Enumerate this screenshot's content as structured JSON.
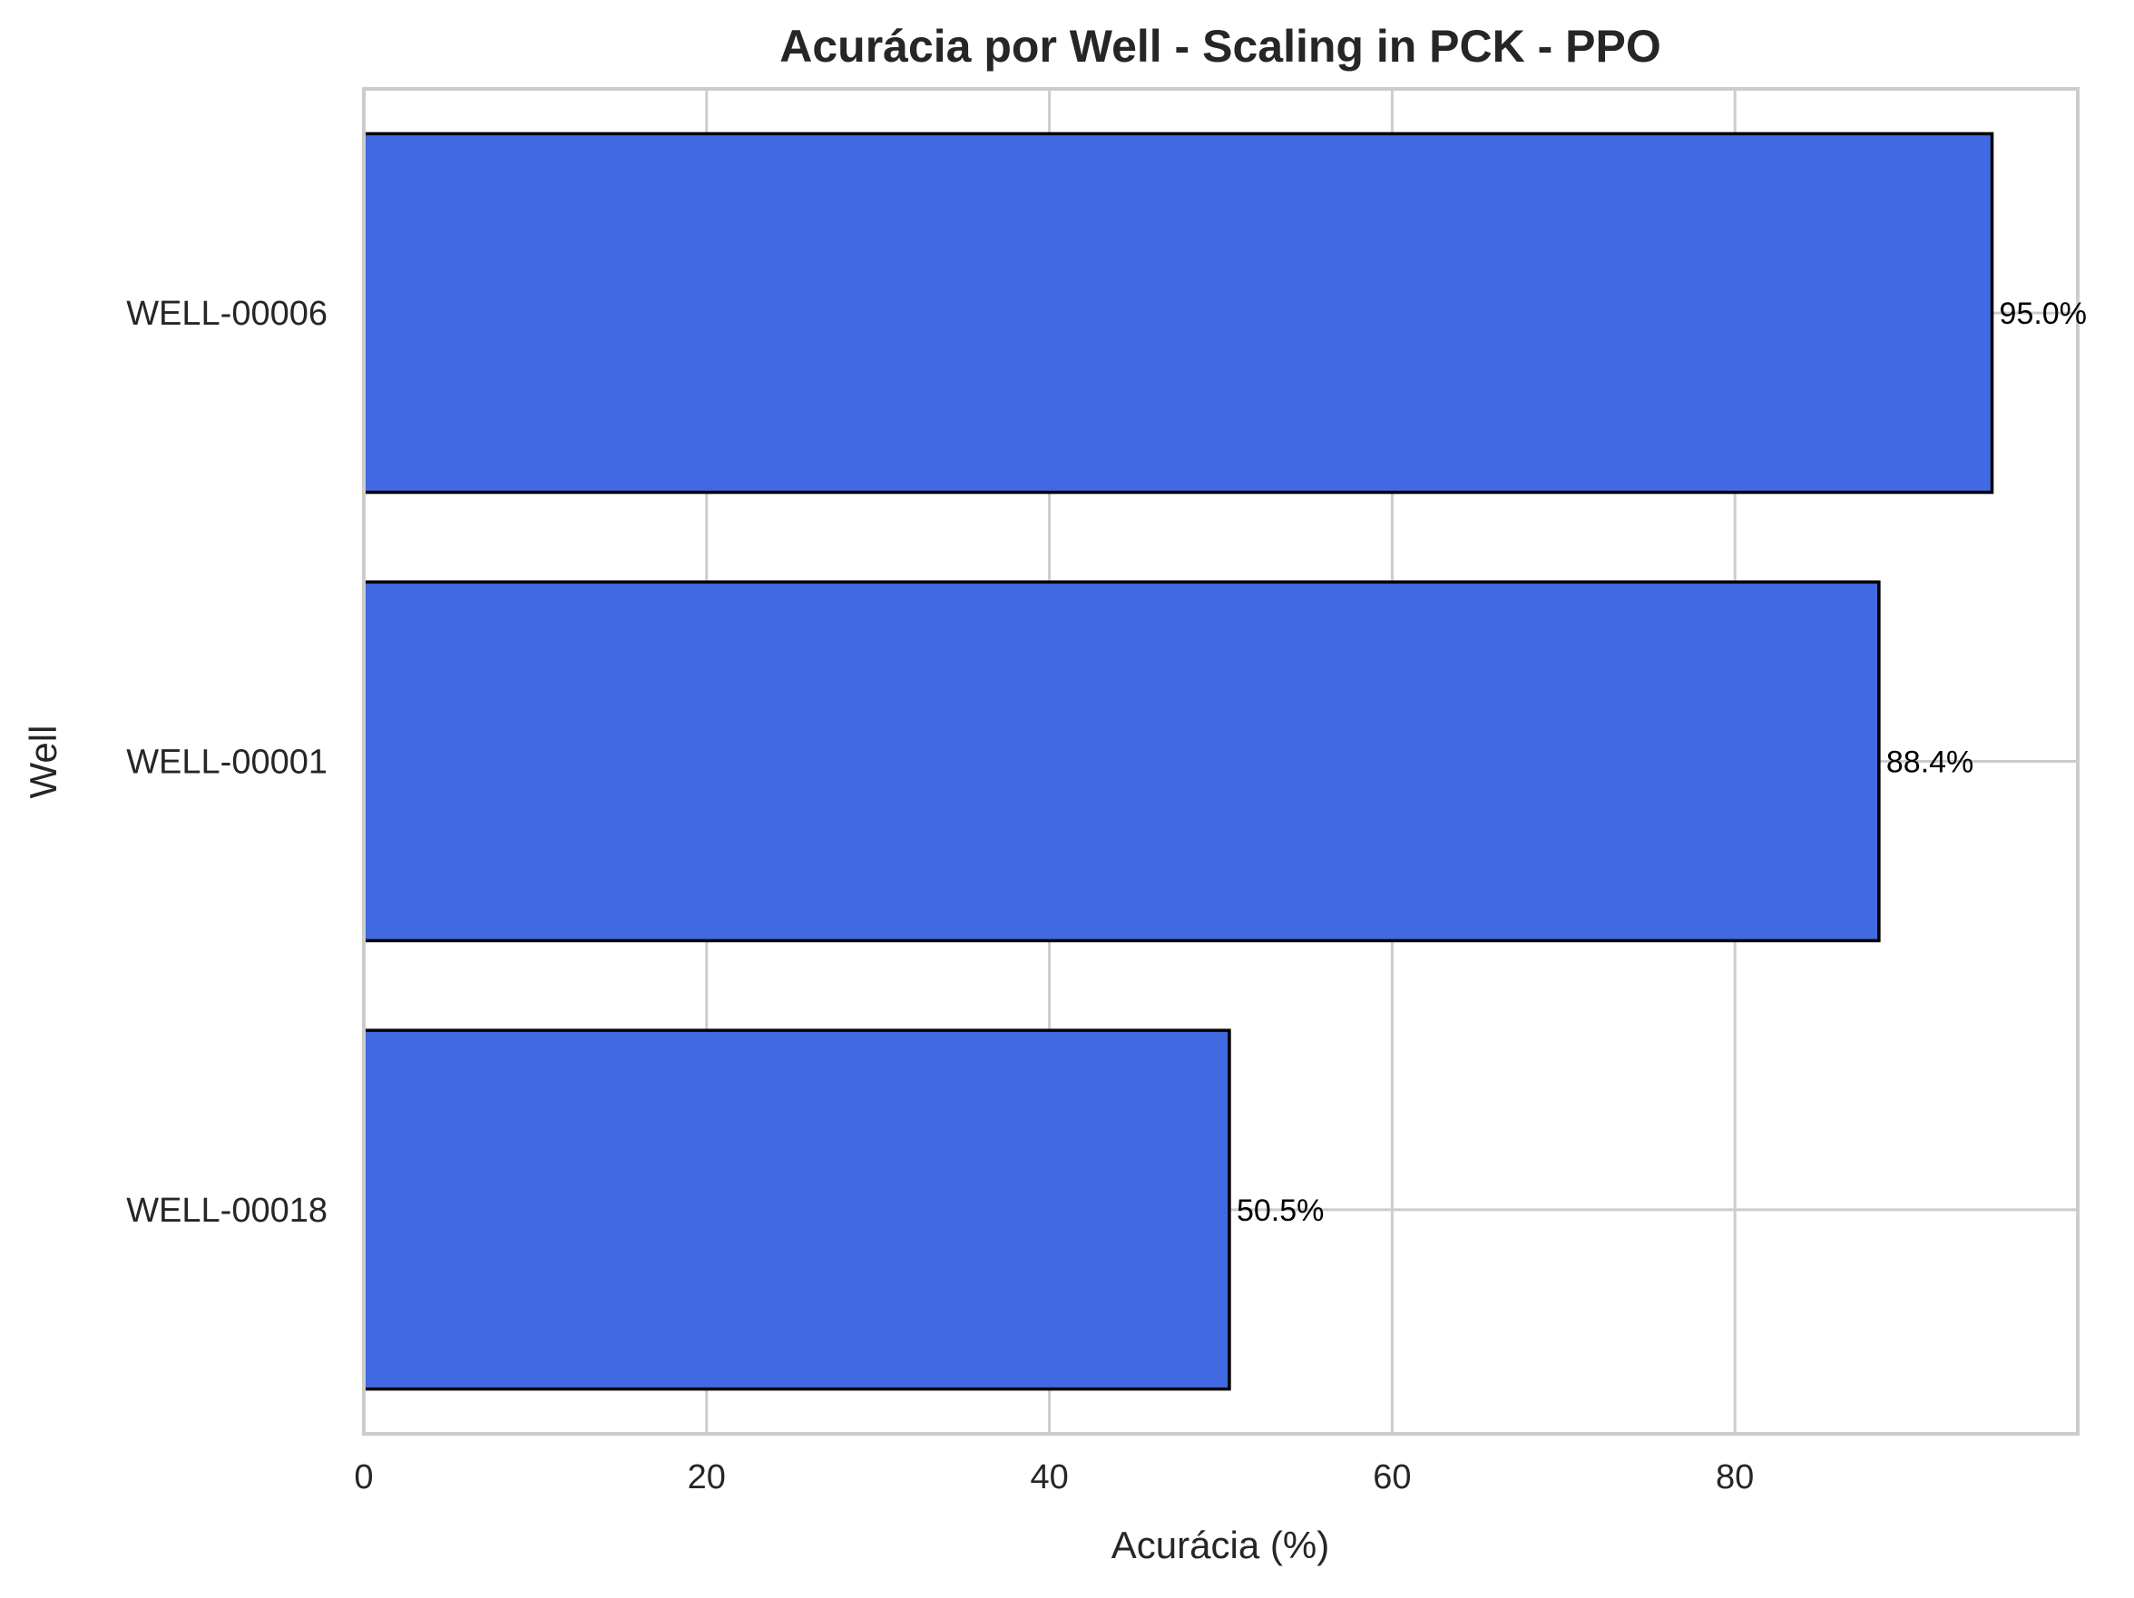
{
  "chart_data": {
    "type": "bar",
    "orientation": "horizontal",
    "title": "Acurácia por Well - Scaling in PCK - PPO",
    "xlabel": "Acurácia (%)",
    "ylabel": "Well",
    "categories": [
      "WELL-00006",
      "WELL-00001",
      "WELL-00018"
    ],
    "values": [
      95.0,
      88.4,
      50.5
    ],
    "value_labels": [
      "95.0%",
      "88.4%",
      "50.5%"
    ],
    "xlim": [
      0,
      100
    ],
    "xticks": [
      0,
      20,
      40,
      60,
      80
    ],
    "xtick_labels": [
      "0",
      "20",
      "40",
      "60",
      "80"
    ],
    "grid": true,
    "colors": {
      "bar_fill": "#4169E1",
      "bar_edge": "#000000",
      "grid": "#cccccc",
      "axes_edge": "#cccccc",
      "text": "#262626"
    }
  }
}
